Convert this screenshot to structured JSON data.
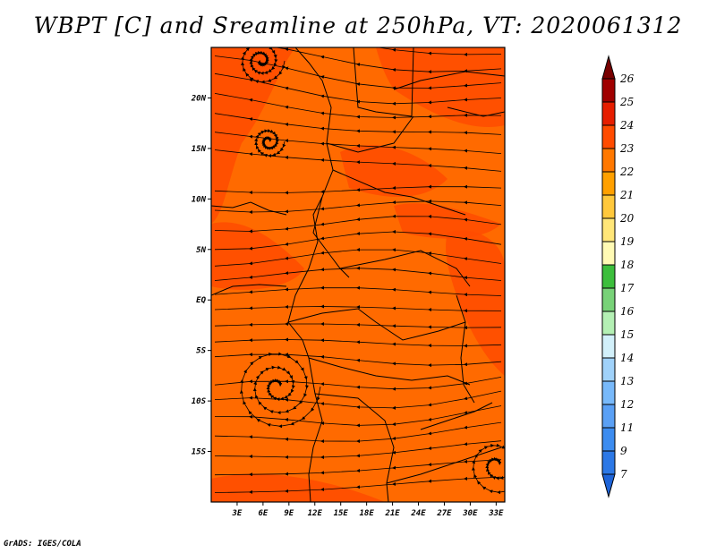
{
  "chart_data": {
    "type": "heatmap",
    "title": "WBPT [C] and Sreamline at 250hPa, VT: 2020061312",
    "variable": "WBPT [C]",
    "level": "250hPa",
    "valid_time": "2020061312",
    "x_ticks": [
      "3E",
      "6E",
      "9E",
      "12E",
      "15E",
      "18E",
      "21E",
      "24E",
      "27E",
      "30E",
      "33E"
    ],
    "y_ticks": [
      "20N",
      "15N",
      "10N",
      "5N",
      "EQ",
      "5S",
      "10S",
      "15S"
    ],
    "lon_range": [
      0,
      34
    ],
    "lat_range": [
      -20,
      25
    ],
    "colorbar": {
      "levels": [
        "7",
        "9",
        "11",
        "12",
        "13",
        "14",
        "15",
        "16",
        "17",
        "18",
        "19",
        "20",
        "21",
        "22",
        "23",
        "24",
        "25",
        "26"
      ],
      "colors": [
        "#1e64d8",
        "#2c78e6",
        "#3c8cf0",
        "#5aa0f5",
        "#78b9fa",
        "#a0d2fa",
        "#d2f0fa",
        "#b4f0b4",
        "#78d278",
        "#3cbe3c",
        "#fffab4",
        "#ffe678",
        "#ffc83c",
        "#ffa000",
        "#ff7800",
        "#ff4b00",
        "#e61e00",
        "#a00000",
        "#780000"
      ]
    },
    "field_description": "Wet-bulb potential temperature mostly 23-24 C over the domain with streamlines"
  },
  "footer": {
    "credit": "GrADS: IGES/COLA"
  }
}
